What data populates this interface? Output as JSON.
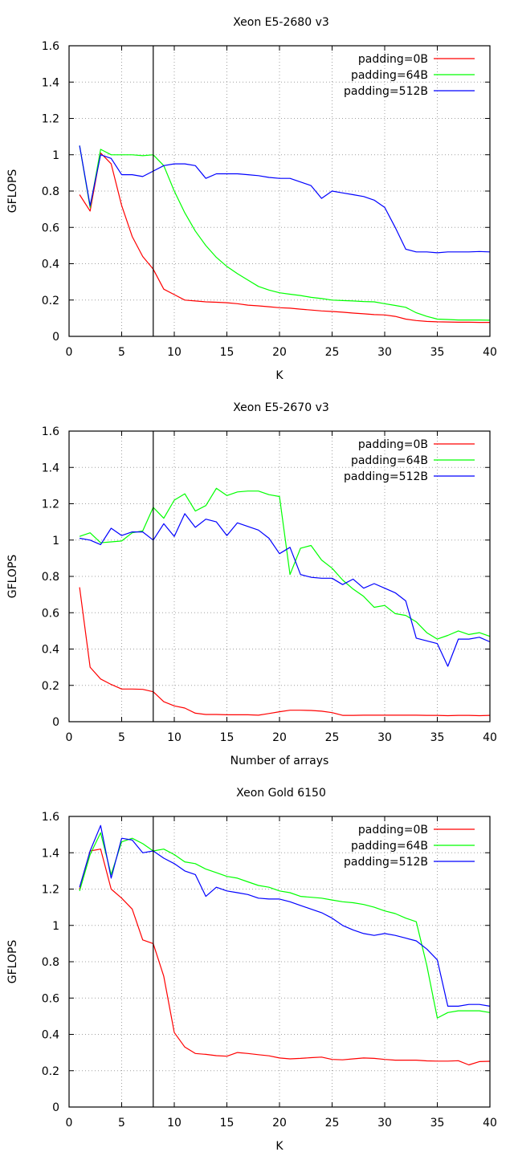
{
  "chart_data": [
    {
      "type": "line",
      "title": "Xeon E5-2680 v3",
      "xlabel": "K",
      "ylabel": "GFLOPS",
      "xlim": [
        0,
        40
      ],
      "ylim": [
        0,
        1.6
      ],
      "xticks": [
        0,
        5,
        10,
        15,
        20,
        25,
        30,
        35,
        40
      ],
      "xtick_labels": [
        "0",
        "5",
        "10",
        "15",
        "20",
        "25",
        "30",
        "35",
        "40"
      ],
      "yticks": [
        0,
        0.2,
        0.4,
        0.6,
        0.8,
        1,
        1.2,
        1.4,
        1.6
      ],
      "ytick_labels": [
        "0",
        "0.2",
        "0.4",
        "0.6",
        "0.8",
        "1",
        "1.2",
        "1.4",
        "1.6"
      ],
      "grid": true,
      "legend_position": "top-right",
      "vline_x": 8,
      "x": [
        1,
        2,
        3,
        4,
        5,
        6,
        7,
        8,
        9,
        10,
        11,
        12,
        13,
        14,
        15,
        16,
        17,
        18,
        19,
        20,
        21,
        22,
        23,
        24,
        25,
        26,
        27,
        28,
        29,
        30,
        31,
        32,
        33,
        34,
        35,
        36,
        37,
        38,
        39,
        40
      ],
      "series": [
        {
          "name": "padding=0B",
          "color": "#ff0000",
          "values": [
            0.78,
            0.69,
            1.01,
            0.95,
            0.72,
            0.55,
            0.44,
            0.37,
            0.26,
            0.23,
            0.2,
            0.195,
            0.19,
            0.188,
            0.185,
            0.18,
            0.172,
            0.168,
            0.163,
            0.158,
            0.155,
            0.15,
            0.145,
            0.14,
            0.137,
            0.133,
            0.128,
            0.124,
            0.12,
            0.118,
            0.11,
            0.095,
            0.087,
            0.082,
            0.08,
            0.079,
            0.078,
            0.078,
            0.077,
            0.077
          ]
        },
        {
          "name": "padding=64B",
          "color": "#00ff00",
          "values": [
            1.05,
            0.71,
            1.03,
            1.0,
            1.0,
            1.0,
            0.995,
            1.0,
            0.94,
            0.8,
            0.68,
            0.58,
            0.5,
            0.435,
            0.385,
            0.345,
            0.31,
            0.275,
            0.255,
            0.24,
            0.232,
            0.225,
            0.215,
            0.208,
            0.2,
            0.197,
            0.195,
            0.192,
            0.19,
            0.18,
            0.17,
            0.16,
            0.13,
            0.11,
            0.095,
            0.093,
            0.09,
            0.09,
            0.09,
            0.089
          ]
        },
        {
          "name": "padding=512B",
          "color": "#0000ff",
          "values": [
            1.05,
            0.72,
            1.0,
            0.98,
            0.89,
            0.89,
            0.88,
            0.91,
            0.94,
            0.95,
            0.95,
            0.94,
            0.87,
            0.895,
            0.895,
            0.895,
            0.89,
            0.885,
            0.875,
            0.87,
            0.87,
            0.85,
            0.83,
            0.76,
            0.8,
            0.79,
            0.78,
            0.77,
            0.75,
            0.71,
            0.6,
            0.48,
            0.465,
            0.465,
            0.46,
            0.465,
            0.465,
            0.465,
            0.467,
            0.465
          ]
        }
      ]
    },
    {
      "type": "line",
      "title": "Xeon E5-2670 v3",
      "xlabel": "Number of arrays",
      "ylabel": "GFLOPS",
      "xlim": [
        0,
        40
      ],
      "ylim": [
        0,
        1.6
      ],
      "xticks": [
        0,
        5,
        10,
        15,
        20,
        25,
        30,
        35,
        40
      ],
      "xtick_labels": [
        "0",
        "5",
        "10",
        "15",
        "20",
        "25",
        "30",
        "35",
        "40"
      ],
      "yticks": [
        0,
        0.2,
        0.4,
        0.6,
        0.8,
        1,
        1.2,
        1.4,
        1.6
      ],
      "ytick_labels": [
        "0",
        "0.2",
        "0.4",
        "0.6",
        "0.8",
        "1",
        "1.2",
        "1.4",
        "1.6"
      ],
      "grid": true,
      "legend_position": "top-right",
      "vline_x": 8,
      "x": [
        1,
        2,
        3,
        4,
        5,
        6,
        7,
        8,
        9,
        10,
        11,
        12,
        13,
        14,
        15,
        16,
        17,
        18,
        19,
        20,
        21,
        22,
        23,
        24,
        25,
        26,
        27,
        28,
        29,
        30,
        31,
        32,
        33,
        34,
        35,
        36,
        37,
        38,
        39,
        40
      ],
      "series": [
        {
          "name": "padding=0B",
          "color": "#ff0000",
          "values": [
            0.74,
            0.3,
            0.235,
            0.205,
            0.18,
            0.18,
            0.178,
            0.165,
            0.11,
            0.087,
            0.075,
            0.047,
            0.04,
            0.04,
            0.038,
            0.038,
            0.038,
            0.036,
            0.045,
            0.055,
            0.063,
            0.063,
            0.062,
            0.058,
            0.05,
            0.035,
            0.035,
            0.036,
            0.036,
            0.036,
            0.036,
            0.036,
            0.036,
            0.035,
            0.035,
            0.033,
            0.035,
            0.035,
            0.033,
            0.035
          ]
        },
        {
          "name": "padding=64B",
          "color": "#00ff00",
          "values": [
            1.02,
            1.04,
            0.985,
            0.99,
            0.995,
            1.04,
            1.05,
            1.18,
            1.12,
            1.22,
            1.255,
            1.16,
            1.19,
            1.285,
            1.245,
            1.265,
            1.27,
            1.27,
            1.25,
            1.24,
            0.81,
            0.955,
            0.97,
            0.89,
            0.845,
            0.78,
            0.73,
            0.69,
            0.63,
            0.64,
            0.595,
            0.585,
            0.55,
            0.49,
            0.455,
            0.475,
            0.5,
            0.48,
            0.49,
            0.47
          ]
        },
        {
          "name": "padding=512B",
          "color": "#0000ff",
          "values": [
            1.01,
            1.0,
            0.975,
            1.065,
            1.025,
            1.045,
            1.045,
            1.0,
            1.09,
            1.02,
            1.145,
            1.07,
            1.115,
            1.1,
            1.025,
            1.095,
            1.075,
            1.055,
            1.01,
            0.925,
            0.96,
            0.81,
            0.795,
            0.79,
            0.79,
            0.755,
            0.785,
            0.735,
            0.76,
            0.735,
            0.71,
            0.665,
            0.46,
            0.445,
            0.43,
            0.305,
            0.455,
            0.455,
            0.465,
            0.44
          ]
        }
      ]
    },
    {
      "type": "line",
      "title": "Xeon Gold 6150",
      "xlabel": "K",
      "ylabel": "GFLOPS",
      "xlim": [
        0,
        40
      ],
      "ylim": [
        0,
        1.6
      ],
      "xticks": [
        0,
        5,
        10,
        15,
        20,
        25,
        30,
        35,
        40
      ],
      "xtick_labels": [
        "0",
        "5",
        "10",
        "15",
        "20",
        "25",
        "30",
        "35",
        "40"
      ],
      "yticks": [
        0,
        0.2,
        0.4,
        0.6,
        0.8,
        1,
        1.2,
        1.4,
        1.6
      ],
      "ytick_labels": [
        "0",
        "0.2",
        "0.4",
        "0.6",
        "0.8",
        "1",
        "1.2",
        "1.4",
        "1.6"
      ],
      "grid": true,
      "legend_position": "top-right",
      "vline_x": 8,
      "x": [
        1,
        2,
        3,
        4,
        5,
        6,
        7,
        8,
        9,
        10,
        11,
        12,
        13,
        14,
        15,
        16,
        17,
        18,
        19,
        20,
        21,
        22,
        23,
        24,
        25,
        26,
        27,
        28,
        29,
        30,
        31,
        32,
        33,
        34,
        35,
        36,
        37,
        38,
        39,
        40
      ],
      "series": [
        {
          "name": "padding=0B",
          "color": "#ff0000",
          "values": [
            1.2,
            1.41,
            1.42,
            1.2,
            1.15,
            1.09,
            0.92,
            0.9,
            0.72,
            0.41,
            0.33,
            0.295,
            0.29,
            0.283,
            0.28,
            0.3,
            0.295,
            0.288,
            0.282,
            0.27,
            0.265,
            0.268,
            0.272,
            0.275,
            0.262,
            0.26,
            0.265,
            0.27,
            0.268,
            0.262,
            0.258,
            0.258,
            0.258,
            0.254,
            0.253,
            0.253,
            0.255,
            0.232,
            0.25,
            0.252
          ]
        },
        {
          "name": "padding=64B",
          "color": "#00ff00",
          "values": [
            1.19,
            1.39,
            1.51,
            1.28,
            1.46,
            1.48,
            1.45,
            1.41,
            1.42,
            1.39,
            1.35,
            1.34,
            1.31,
            1.29,
            1.27,
            1.26,
            1.24,
            1.22,
            1.21,
            1.19,
            1.18,
            1.16,
            1.155,
            1.15,
            1.14,
            1.13,
            1.125,
            1.115,
            1.1,
            1.08,
            1.065,
            1.04,
            1.02,
            0.78,
            0.49,
            0.52,
            0.53,
            0.53,
            0.53,
            0.52
          ]
        },
        {
          "name": "padding=512B",
          "color": "#0000ff",
          "values": [
            1.21,
            1.41,
            1.55,
            1.26,
            1.48,
            1.47,
            1.4,
            1.41,
            1.37,
            1.34,
            1.3,
            1.28,
            1.16,
            1.21,
            1.19,
            1.18,
            1.17,
            1.15,
            1.145,
            1.145,
            1.13,
            1.11,
            1.09,
            1.07,
            1.04,
            1.0,
            0.975,
            0.955,
            0.945,
            0.955,
            0.945,
            0.93,
            0.915,
            0.87,
            0.81,
            0.555,
            0.555,
            0.565,
            0.565,
            0.555
          ]
        }
      ]
    }
  ]
}
